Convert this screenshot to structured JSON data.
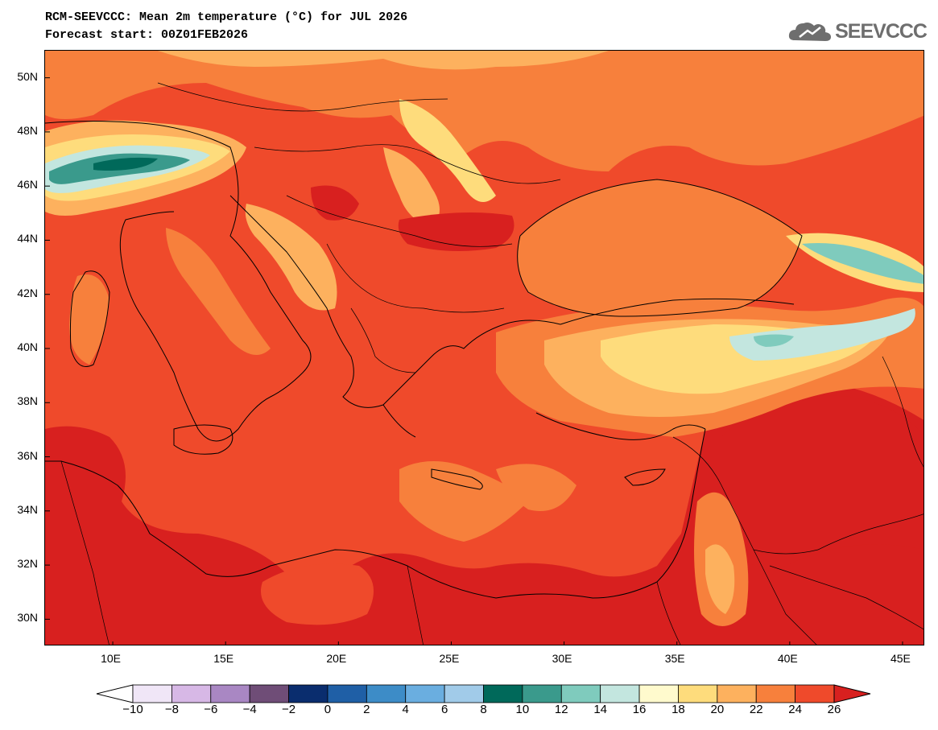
{
  "header": {
    "title_line1": "RCM-SEEVCCC: Mean 2m temperature (°C) for JUL 2026",
    "title_line2": "Forecast start: 00Z01FEB2026",
    "logo_text": "SEEVCCC",
    "logo_icon": "cloud-icon"
  },
  "map": {
    "lon_range": [
      7,
      46
    ],
    "lat_range": [
      29,
      51
    ],
    "lat_labels": [
      "50N",
      "48N",
      "46N",
      "44N",
      "42N",
      "40N",
      "38N",
      "36N",
      "34N",
      "32N",
      "30N"
    ],
    "lat_values": [
      50,
      48,
      46,
      44,
      42,
      40,
      38,
      36,
      34,
      32,
      30
    ],
    "lon_labels": [
      "10E",
      "15E",
      "20E",
      "25E",
      "30E",
      "35E",
      "40E",
      "45E"
    ],
    "lon_values": [
      10,
      15,
      20,
      25,
      30,
      35,
      40,
      45
    ]
  },
  "legend": {
    "labels": [
      "−10",
      "−8",
      "−6",
      "−4",
      "−2",
      "0",
      "2",
      "4",
      "6",
      "8",
      "10",
      "12",
      "14",
      "16",
      "18",
      "20",
      "22",
      "24",
      "26"
    ],
    "colors": [
      "#ffffff",
      "#f0e6f7",
      "#d7b8e6",
      "#a987c3",
      "#6f4d77",
      "#0a2d6e",
      "#1f5fa6",
      "#3d8cc7",
      "#6aaee0",
      "#a1cbe9",
      "#00695a",
      "#3a9a8c",
      "#7fcbbd",
      "#c3e6df",
      "#fffacd",
      "#fedc7c",
      "#fdb15e",
      "#f7803c",
      "#ef4a2b",
      "#d8201f"
    ]
  }
}
